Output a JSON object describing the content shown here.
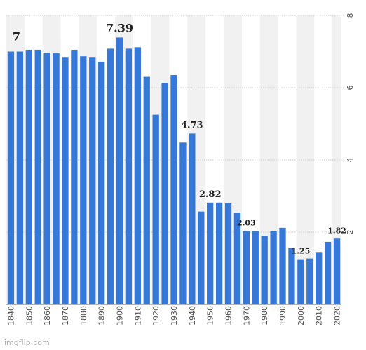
{
  "chart_data": {
    "type": "bar",
    "title": "",
    "xlabel": "",
    "ylabel": "",
    "ylim": [
      0,
      8
    ],
    "yticks": [
      "2",
      "4",
      "6",
      "8"
    ],
    "grid": true,
    "bar_color": "#3578d8",
    "band_color": "#f1f1f1",
    "categories": [
      "1840",
      "1845",
      "1850",
      "1855",
      "1860",
      "1865",
      "1870",
      "1875",
      "1880",
      "1885",
      "1890",
      "1895",
      "1900",
      "1905",
      "1910",
      "1915",
      "1920",
      "1925",
      "1930",
      "1935",
      "1940",
      "1945",
      "1950",
      "1955",
      "1960",
      "1965",
      "1970",
      "1975",
      "1980",
      "1985",
      "1990",
      "1995",
      "2000",
      "2005",
      "2010",
      "2015",
      "2020"
    ],
    "xtick_labels": [
      "1840",
      "1850",
      "1860",
      "1870",
      "1880",
      "1890",
      "1900",
      "1910",
      "1920",
      "1930",
      "1940",
      "1950",
      "1960",
      "1970",
      "1980",
      "1990",
      "2000",
      "2010",
      "2020"
    ],
    "values": [
      7.0,
      7.0,
      7.05,
      7.05,
      6.97,
      6.95,
      6.85,
      7.05,
      6.87,
      6.85,
      6.72,
      7.08,
      7.39,
      7.08,
      7.12,
      6.3,
      5.25,
      6.13,
      6.35,
      4.48,
      4.73,
      2.57,
      2.82,
      2.82,
      2.8,
      2.53,
      2.03,
      2.03,
      1.9,
      2.02,
      2.12,
      1.57,
      1.25,
      1.27,
      1.45,
      1.73,
      1.82
    ],
    "data_labels": [
      {
        "index": 0,
        "text": "7"
      },
      {
        "index": 12,
        "text": "7.39"
      },
      {
        "index": 20,
        "text": "4.73"
      },
      {
        "index": 22,
        "text": "2.82"
      },
      {
        "index": 26,
        "text": "2.03"
      },
      {
        "index": 32,
        "text": "1.25"
      },
      {
        "index": 36,
        "text": "1.82"
      }
    ]
  },
  "watermark": "imgflip.com"
}
